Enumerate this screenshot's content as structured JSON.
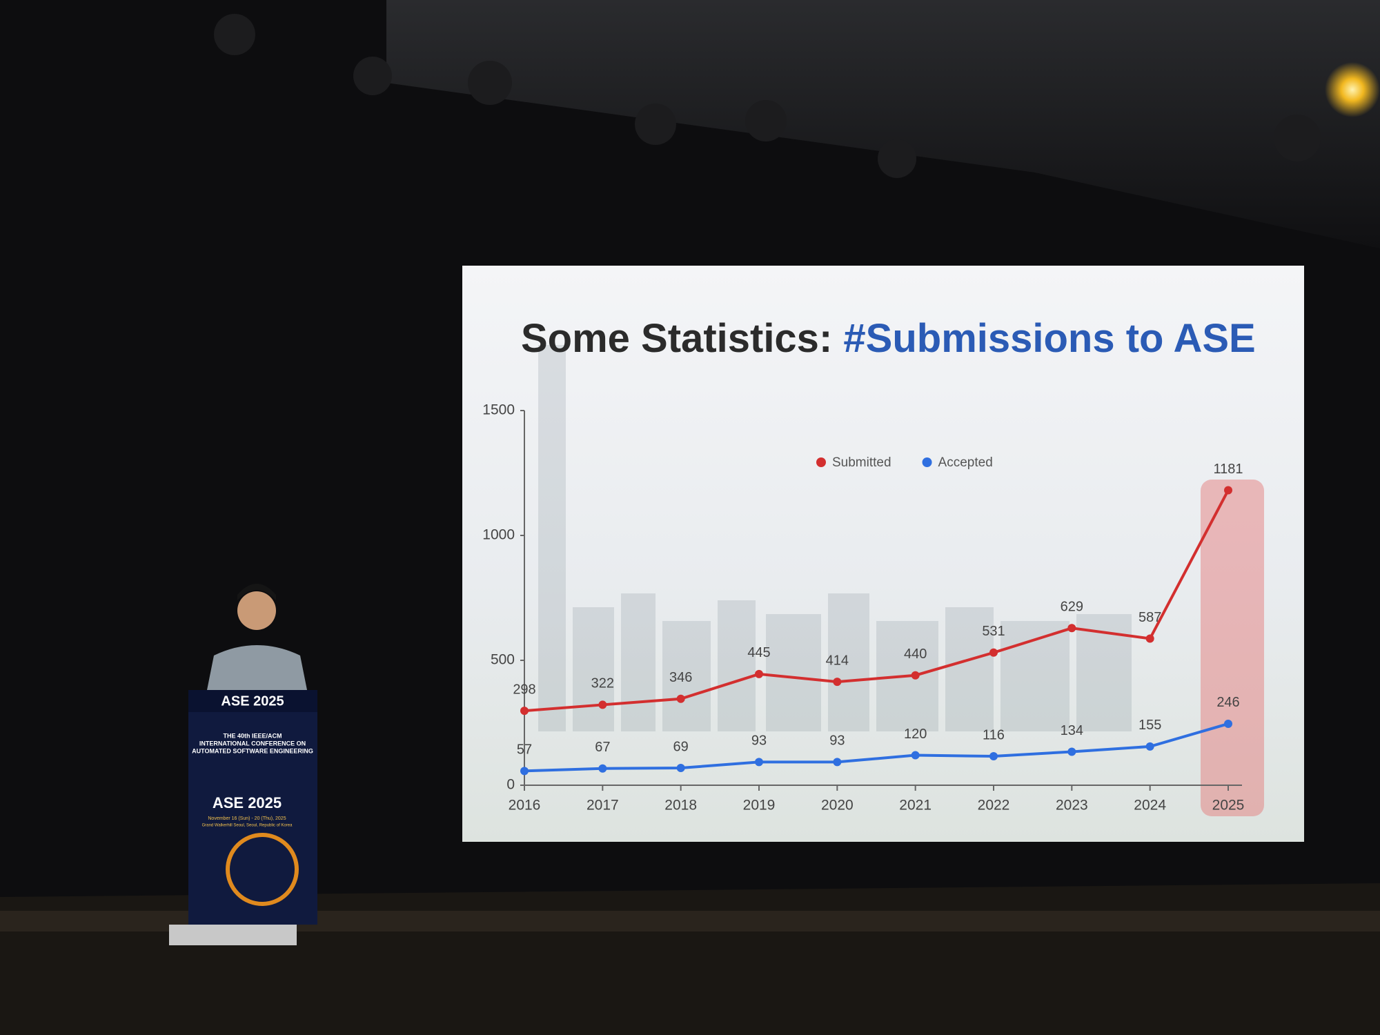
{
  "chart_data": {
    "type": "line",
    "title": [
      "Some Statistics:",
      "#Submissions to ASE"
    ],
    "categories": [
      "2016",
      "2017",
      "2018",
      "2019",
      "2020",
      "2021",
      "2022",
      "2023",
      "2024",
      "2025"
    ],
    "series": [
      {
        "name": "Submitted",
        "color": "#d32f2f",
        "values": [
          298,
          322,
          346,
          445,
          414,
          440,
          531,
          629,
          587,
          1181
        ]
      },
      {
        "name": "Accepted",
        "color": "#2f6fe0",
        "values": [
          57,
          67,
          69,
          93,
          93,
          120,
          116,
          134,
          155,
          246
        ]
      }
    ],
    "ylim": [
      0,
      1500
    ],
    "yticks": [
      0,
      500,
      1000,
      1500
    ],
    "legend": "top",
    "data_labels": true
  },
  "podium": {
    "banner": "ASE 2025",
    "lines": [
      "THE 40th IEEE/ACM",
      "INTERNATIONAL CONFERENCE ON",
      "AUTOMATED SOFTWARE ENGINEERING"
    ],
    "logo": "ASE 2025",
    "date": "November 16 (Sun) - 20 (Thu), 2025",
    "venue": "Grand Walkerhill Seoul, Seoul, Republic of Korea"
  }
}
